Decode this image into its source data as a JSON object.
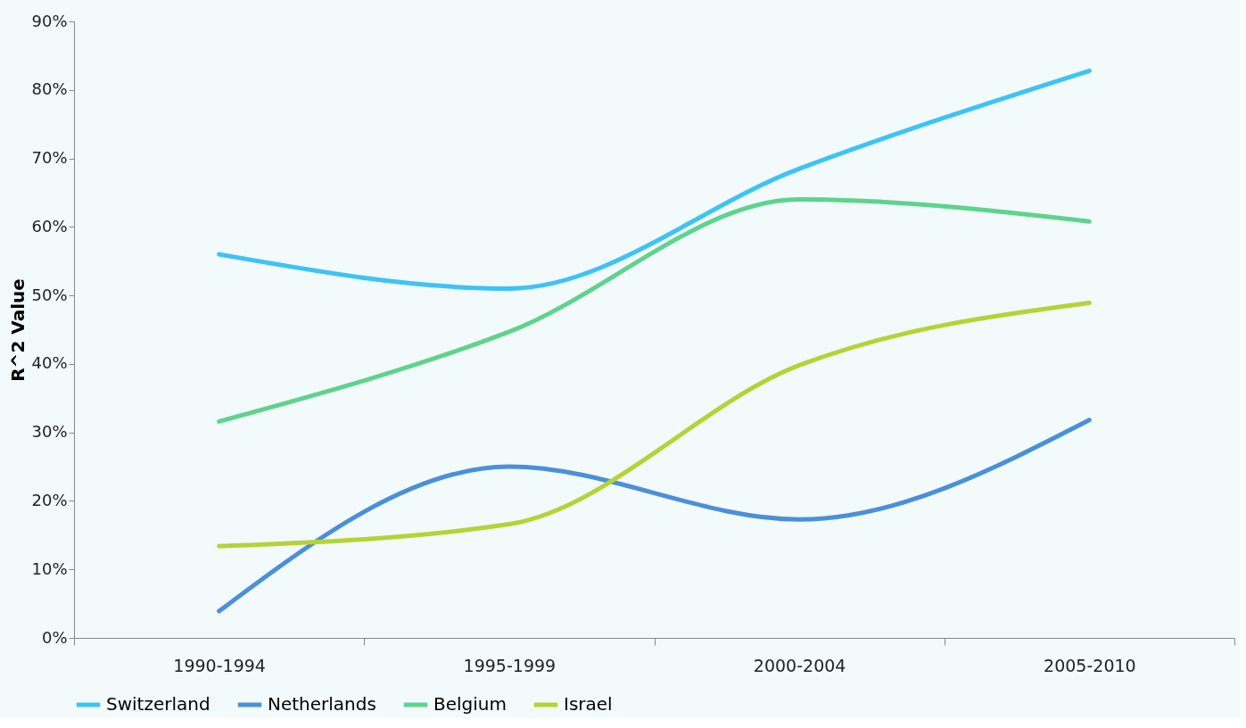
{
  "chart_data": {
    "type": "line",
    "ylabel": "R^2 Value",
    "categories": [
      "1990-1994",
      "1995-1999",
      "2000-2004",
      "2005-2010"
    ],
    "series": [
      {
        "name": "Switzerland",
        "color": "#3ec3f5",
        "values": [
          56,
          51,
          68.5,
          82.8
        ]
      },
      {
        "name": "Netherlands",
        "color": "#4a90d9",
        "values": [
          3.9,
          25,
          17.3,
          31.8
        ]
      },
      {
        "name": "Belgium",
        "color": "#5fd38d",
        "values": [
          31.6,
          44.7,
          64,
          60.8
        ]
      },
      {
        "name": "Israel",
        "color": "#b5d334",
        "values": [
          13.4,
          16.6,
          39.8,
          48.9
        ]
      }
    ],
    "ylim": [
      0,
      90
    ],
    "yticks": [
      {
        "value": 0,
        "label": "0%"
      },
      {
        "value": 10,
        "label": "10%"
      },
      {
        "value": 20,
        "label": "20%"
      },
      {
        "value": 30,
        "label": "30%"
      },
      {
        "value": 40,
        "label": "40%"
      },
      {
        "value": 50,
        "label": "50%"
      },
      {
        "value": 60,
        "label": "60%"
      },
      {
        "value": 70,
        "label": "70%"
      },
      {
        "value": 80,
        "label": "80%"
      },
      {
        "value": 90,
        "label": "90%"
      }
    ],
    "grid": false,
    "legend": "bottom",
    "marker": "none",
    "line_style": "solid"
  }
}
